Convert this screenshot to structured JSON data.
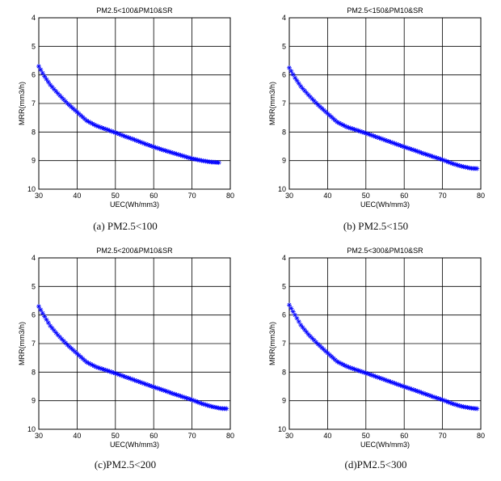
{
  "chart_data": [
    {
      "type": "scatter",
      "title": "PM2.5<100&PM10&SR",
      "caption": "(a) PM2.5<100",
      "xlabel": "UEC(Wh/mm3)",
      "ylabel": "MRR(mm3/h)",
      "xlim": [
        30,
        80
      ],
      "ylim": [
        10,
        4
      ],
      "y_reversed": true,
      "grid": true,
      "xticks": [
        30,
        40,
        50,
        60,
        70,
        80
      ],
      "yticks": [
        4,
        5,
        6,
        7,
        8,
        9,
        10
      ],
      "marker": "*",
      "color": "#0000ff",
      "series": [
        {
          "x": [
            30.0,
            31.5,
            33.0,
            35.0,
            37.5,
            40.0,
            42.5,
            45.0,
            47.5,
            50.0,
            52.5,
            55.0,
            57.5,
            60.0,
            62.5,
            65.0,
            67.5,
            70.0,
            72.5,
            75.0,
            77.0
          ],
          "y": [
            5.7,
            6.05,
            6.35,
            6.65,
            7.0,
            7.3,
            7.6,
            7.78,
            7.9,
            8.02,
            8.15,
            8.27,
            8.4,
            8.52,
            8.63,
            8.73,
            8.83,
            8.93,
            9.0,
            9.05,
            9.07
          ]
        }
      ]
    },
    {
      "type": "scatter",
      "title": "PM2.5<150&PM10&SR",
      "caption": "(b) PM2.5<150",
      "xlabel": "UEC(Wh/mm3)",
      "ylabel": "MRR(mm3/h)",
      "xlim": [
        30,
        80
      ],
      "ylim": [
        10,
        4
      ],
      "y_reversed": true,
      "grid": true,
      "xticks": [
        30,
        40,
        50,
        60,
        70,
        80
      ],
      "yticks": [
        4,
        5,
        6,
        7,
        8,
        9,
        10
      ],
      "marker": "*",
      "color": "#0000ff",
      "series": [
        {
          "x": [
            30.0,
            31.5,
            33.0,
            35.0,
            37.5,
            40.0,
            42.5,
            45.0,
            47.5,
            50.0,
            52.5,
            55.0,
            57.5,
            60.0,
            62.5,
            65.0,
            67.5,
            70.0,
            72.5,
            75.0,
            77.5,
            79.0
          ],
          "y": [
            5.75,
            6.1,
            6.4,
            6.7,
            7.05,
            7.35,
            7.65,
            7.82,
            7.93,
            8.04,
            8.16,
            8.28,
            8.4,
            8.52,
            8.63,
            8.75,
            8.86,
            8.97,
            9.1,
            9.2,
            9.27,
            9.28
          ]
        }
      ]
    },
    {
      "type": "scatter",
      "title": "PM2.5<200&PM10&SR",
      "caption": "(c)PM2.5<200",
      "xlabel": "UEC(Wh/mm3)",
      "ylabel": "MRR(mm3/h)",
      "xlim": [
        30,
        80
      ],
      "ylim": [
        10,
        4
      ],
      "y_reversed": true,
      "grid": true,
      "xticks": [
        30,
        40,
        50,
        60,
        70,
        80
      ],
      "yticks": [
        4,
        5,
        6,
        7,
        8,
        9,
        10
      ],
      "marker": "*",
      "color": "#0000ff",
      "series": [
        {
          "x": [
            30.0,
            31.5,
            33.0,
            35.0,
            37.5,
            40.0,
            42.5,
            45.0,
            47.5,
            50.0,
            52.5,
            55.0,
            57.5,
            60.0,
            62.5,
            65.0,
            67.5,
            70.0,
            72.5,
            75.0,
            77.5,
            79.0
          ],
          "y": [
            5.7,
            6.05,
            6.38,
            6.7,
            7.05,
            7.35,
            7.65,
            7.82,
            7.93,
            8.04,
            8.16,
            8.28,
            8.4,
            8.52,
            8.63,
            8.75,
            8.86,
            8.97,
            9.1,
            9.2,
            9.27,
            9.28
          ]
        }
      ]
    },
    {
      "type": "scatter",
      "title": "PM2.5<300&PM10&SR",
      "caption": "(d)PM2.5<300",
      "xlabel": "UEC(Wh/mm3)",
      "ylabel": "MRR(mm3/h)",
      "xlim": [
        30,
        80
      ],
      "ylim": [
        10,
        4
      ],
      "y_reversed": true,
      "grid": true,
      "xticks": [
        30,
        40,
        50,
        60,
        70,
        80
      ],
      "yticks": [
        4,
        5,
        6,
        7,
        8,
        9,
        10
      ],
      "marker": "*",
      "color": "#0000ff",
      "series": [
        {
          "x": [
            30.0,
            31.5,
            33.0,
            35.0,
            37.5,
            40.0,
            42.5,
            45.0,
            47.5,
            50.0,
            52.5,
            55.0,
            57.5,
            60.0,
            62.5,
            65.0,
            67.5,
            70.0,
            72.5,
            75.0,
            77.5,
            79.0
          ],
          "y": [
            5.65,
            6.0,
            6.35,
            6.68,
            7.02,
            7.33,
            7.63,
            7.8,
            7.92,
            8.03,
            8.15,
            8.27,
            8.39,
            8.51,
            8.62,
            8.74,
            8.86,
            8.97,
            9.1,
            9.2,
            9.26,
            9.28
          ]
        }
      ]
    }
  ]
}
